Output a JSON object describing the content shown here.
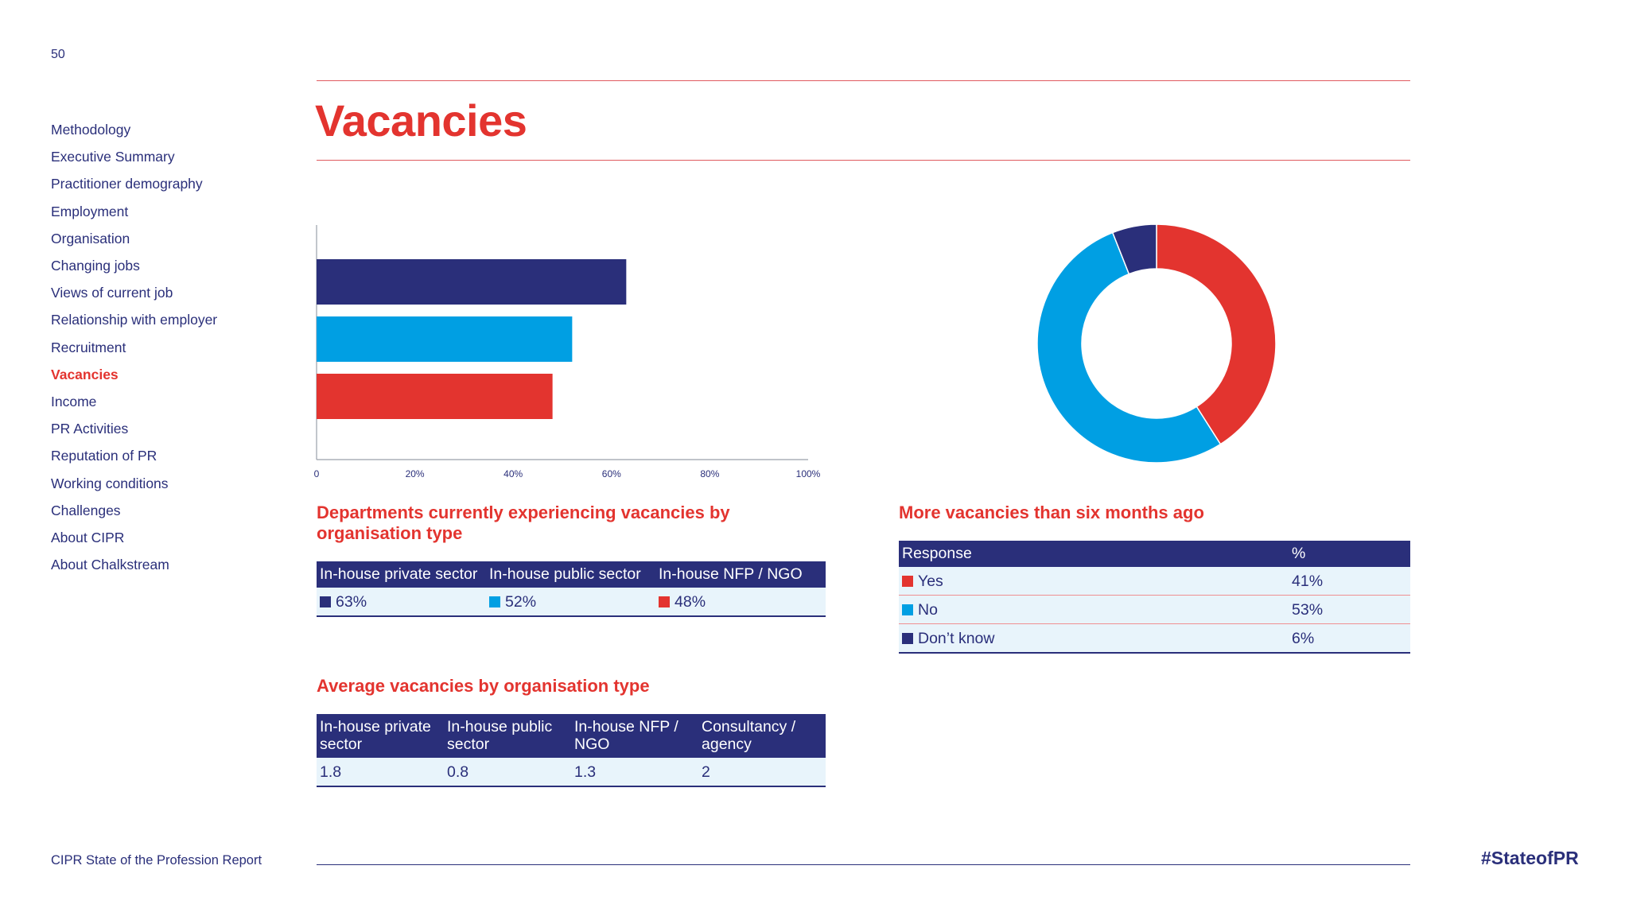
{
  "page": {
    "number": "50",
    "title": "Vacancies"
  },
  "colors": {
    "navy": "#2a2f7a",
    "blue": "#009fe3",
    "red": "#e3342f",
    "row_bg": "#e8f4fb"
  },
  "sidebar": {
    "items": [
      {
        "label": "Methodology"
      },
      {
        "label": "Executive Summary"
      },
      {
        "label": "Practitioner demography"
      },
      {
        "label": "Employment"
      },
      {
        "label": "Organisation"
      },
      {
        "label": "Changing jobs"
      },
      {
        "label": "Views of current job"
      },
      {
        "label": "Relationship with employer"
      },
      {
        "label": "Recruitment"
      },
      {
        "label": "Vacancies",
        "active": true
      },
      {
        "label": "Income"
      },
      {
        "label": "PR Activities"
      },
      {
        "label": "Reputation of PR"
      },
      {
        "label": "Working conditions"
      },
      {
        "label": "Challenges"
      },
      {
        "label": "About CIPR"
      },
      {
        "label": "About Chalkstream"
      }
    ]
  },
  "chart_data": [
    {
      "type": "bar",
      "orientation": "horizontal",
      "title": "Departments currently experiencing vacancies by organisation type",
      "categories": [
        "In-house private sector",
        "In-house public sector",
        "In-house NFP / NGO"
      ],
      "values": [
        63,
        52,
        48
      ],
      "colors": [
        "#2a2f7a",
        "#009fe3",
        "#e3342f"
      ],
      "xlim": [
        0,
        100
      ],
      "x_ticks": [
        "0",
        "20%",
        "40%",
        "60%",
        "80%",
        "100%"
      ],
      "grid": false
    },
    {
      "type": "pie",
      "style": "donut",
      "title": "More vacancies than six months ago",
      "labels": [
        "Yes",
        "No",
        "Don’t know"
      ],
      "values": [
        41,
        53,
        6
      ],
      "colors": [
        "#e3342f",
        "#009fe3",
        "#2a2f7a"
      ]
    }
  ],
  "dept_table": {
    "headers": [
      "In-house private sector",
      "In-house public sector",
      "In-house NFP / NGO"
    ],
    "values": [
      "63%",
      "52%",
      "48%"
    ]
  },
  "avg_table": {
    "title": "Average vacancies by organisation type",
    "headers": [
      "In-house private sector",
      "In-house public sector",
      "In-house NFP / NGO",
      "Consultancy / agency"
    ],
    "values": [
      "1.8",
      "0.8",
      "1.3",
      "2"
    ]
  },
  "response_table": {
    "headers": [
      "Response",
      "%"
    ],
    "rows": [
      {
        "response": "Yes",
        "pct": "41%"
      },
      {
        "response": "No",
        "pct": "53%"
      },
      {
        "response": "Don’t know",
        "pct": "6%"
      }
    ]
  },
  "footer": {
    "report_name": "CIPR State of the Profession Report",
    "hashtag": "#StateofPR"
  }
}
